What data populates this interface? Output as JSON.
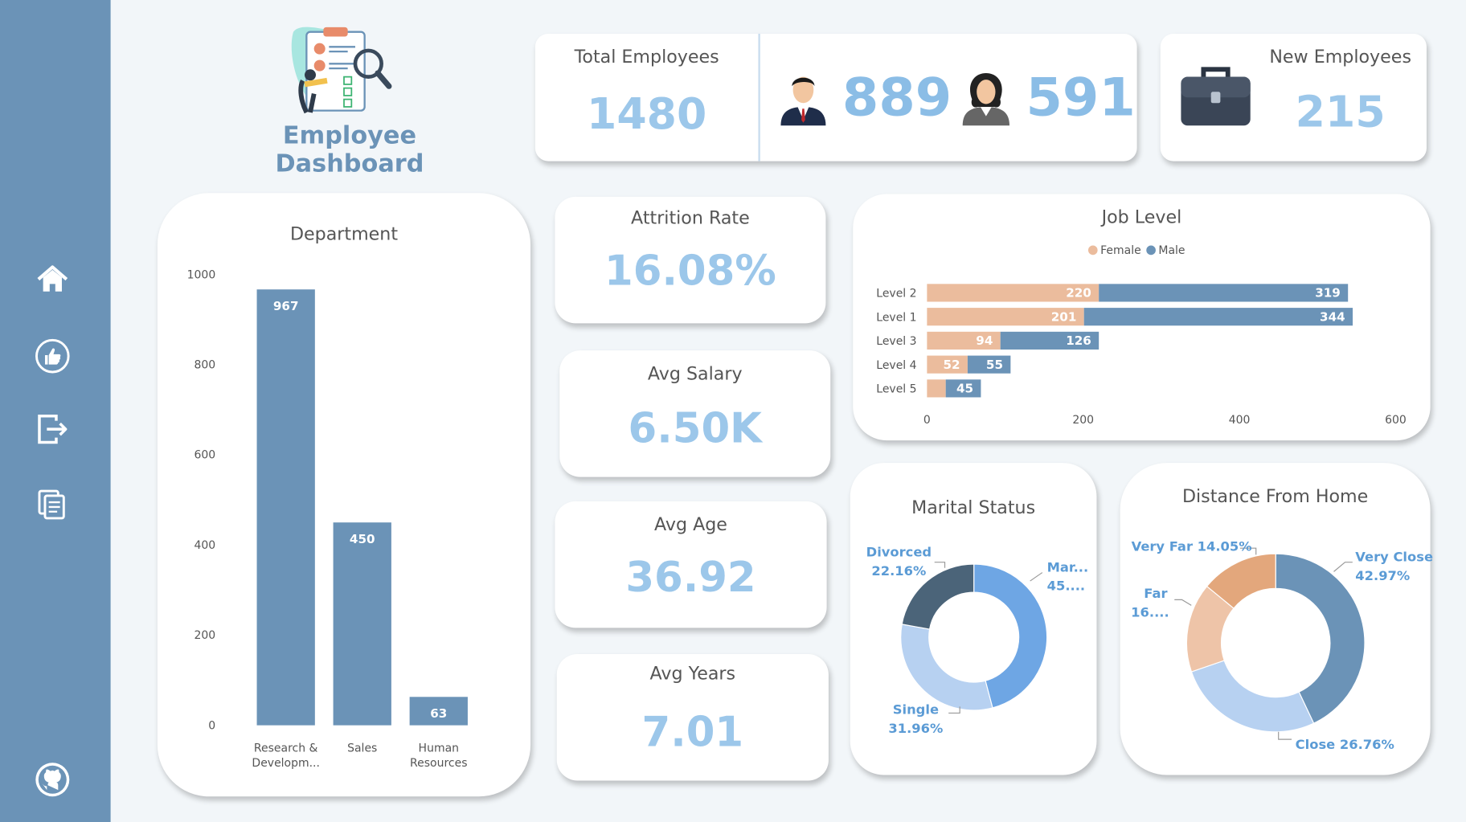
{
  "dashboard": {
    "title": "Employee Dashboard"
  },
  "sidebar": {
    "items": [
      {
        "icon": "home-icon"
      },
      {
        "icon": "thumbs-up-icon"
      },
      {
        "icon": "exit-icon"
      },
      {
        "icon": "documents-icon"
      },
      {
        "icon": "github-icon"
      }
    ]
  },
  "kpis": {
    "total_employees": {
      "label": "Total Employees",
      "value": "1480"
    },
    "male_count": "889",
    "female_count": "591",
    "new_employees": {
      "label": "New Employees",
      "value": "215"
    },
    "attrition_rate": {
      "label": "Attrition Rate",
      "value": "16.08%"
    },
    "avg_salary": {
      "label": "Avg Salary",
      "value": "6.50K"
    },
    "avg_age": {
      "label": "Avg Age",
      "value": "36.92"
    },
    "avg_years": {
      "label": "Avg Years",
      "value": "7.01"
    }
  },
  "colors": {
    "sidebar": "#6b93b7",
    "bar": "#6b93b7",
    "female": "#ebbc9d",
    "male": "#6b93b7",
    "kpi_value": "#9cc7ea"
  },
  "chart_data": [
    {
      "type": "bar",
      "title": "Department",
      "categories": [
        "Research & Developm...",
        "Sales",
        "Human Resources"
      ],
      "category_lines": [
        [
          "Research &",
          "Developm..."
        ],
        [
          "Sales"
        ],
        [
          "Human",
          "Resources"
        ]
      ],
      "values": [
        967,
        450,
        63
      ],
      "ylim": [
        0,
        1000
      ],
      "yticks": [
        0,
        200,
        400,
        600,
        800,
        1000
      ],
      "grid": false
    },
    {
      "type": "bar",
      "orientation": "horizontal",
      "stacked": true,
      "title": "Job Level",
      "categories": [
        "Level 2",
        "Level 1",
        "Level 3",
        "Level 4",
        "Level 5"
      ],
      "series": [
        {
          "name": "Female",
          "values": [
            220,
            201,
            94,
            52,
            24
          ]
        },
        {
          "name": "Male",
          "values": [
            319,
            344,
            126,
            55,
            45
          ]
        }
      ],
      "value_labels": {
        "Female": [
          "220",
          "201",
          "94",
          "52",
          ""
        ],
        "Male": [
          "319",
          "344",
          "126",
          "55",
          "45"
        ]
      },
      "xlim": [
        0,
        600
      ],
      "xticks": [
        0,
        200,
        400,
        600
      ],
      "legend": "top-center",
      "grid": false
    },
    {
      "type": "pie",
      "donut": true,
      "title": "Marital Status",
      "slices": [
        {
          "label": "Mar...",
          "pct_label": "45....",
          "value": 45.88,
          "color": "#6ea6e4"
        },
        {
          "label": "Single",
          "pct_label": "31.96%",
          "value": 31.96,
          "color": "#b7d1f1"
        },
        {
          "label": "Divorced",
          "pct_label": "22.16%",
          "value": 22.16,
          "color": "#4b6479"
        }
      ]
    },
    {
      "type": "pie",
      "donut": true,
      "title": "Distance From Home",
      "slices": [
        {
          "label": "Very Close",
          "pct_label": "42.97%",
          "value": 42.97,
          "color": "#6b93b7"
        },
        {
          "label": "Close",
          "pct_label": "26.76%",
          "value": 26.76,
          "color": "#b7d1f1"
        },
        {
          "label": "Far",
          "pct_label": "16....",
          "value": 16.22,
          "color": "#eec4a8"
        },
        {
          "label": "Very Far",
          "pct_label": "14.05%",
          "value": 14.05,
          "color": "#e3a77c"
        }
      ]
    }
  ]
}
